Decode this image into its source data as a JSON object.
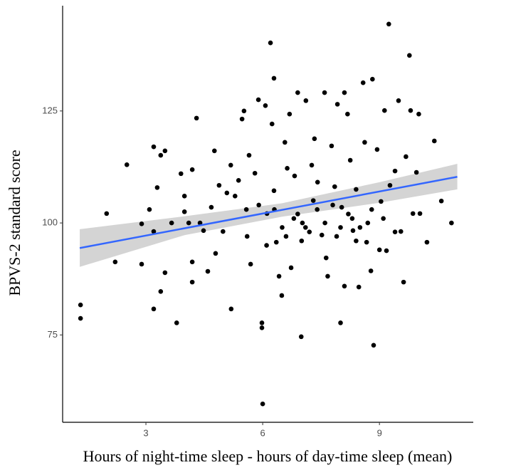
{
  "chart_data": {
    "type": "scatter",
    "x_label": "Hours of night-time sleep  -  hours of day-time sleep (mean)",
    "y_label": "BPVS-2 standard score",
    "xlim": [
      0.86,
      11.41
    ],
    "ylim": [
      55.5,
      148.5
    ],
    "xticks": [
      3,
      6,
      9
    ],
    "yticks": [
      75,
      100,
      125
    ],
    "color": "#000000",
    "x": [
      1.32,
      1.32,
      1.99,
      2.21,
      2.51,
      2.89,
      2.89,
      3.09,
      3.2,
      3.2,
      3.2,
      3.29,
      3.38,
      3.49,
      3.38,
      3.49,
      3.66,
      3.79,
      3.9,
      3.99,
      3.99,
      4.1,
      4.19,
      4.19,
      4.19,
      4.3,
      4.39,
      4.48,
      4.59,
      4.68,
      4.76,
      4.79,
      4.88,
      4.98,
      5.08,
      5.18,
      5.19,
      5.29,
      5.38,
      5.47,
      5.52,
      5.58,
      5.65,
      5.69,
      5.8,
      5.89,
      5.98,
      5.98,
      6.0,
      6.07,
      6.11,
      6.2,
      6.24,
      6.29,
      6.29,
      6.35,
      6.42,
      6.49,
      6.57,
      6.63,
      6.69,
      6.73,
      6.82,
      6.9,
      6.99,
      7.02,
      7.11,
      7.26,
      7.33,
      7.41,
      7.52,
      7.59,
      7.63,
      7.67,
      7.77,
      7.85,
      7.92,
      8.0,
      8.03,
      8.1,
      8.1,
      8.18,
      8.25,
      8.32,
      8.4,
      8.47,
      8.58,
      8.62,
      8.67,
      8.78,
      8.82,
      8.85,
      8.94,
      9.04,
      9.13,
      9.18,
      9.24,
      9.27,
      9.4,
      9.49,
      9.55,
      9.62,
      9.68,
      9.77,
      9.8,
      9.86,
      9.95,
      10.01,
      10.04,
      10.22,
      10.41,
      10.59,
      10.85,
      6.5,
      6.8,
      7.2,
      7.4,
      7.6,
      7.9,
      8.2,
      8.5,
      8.8,
      7.0,
      6.3,
      6.6,
      7.3,
      8.0,
      8.4,
      8.7,
      9.1,
      9.4,
      7.8,
      6.9,
      5.6,
      5.9,
      6.1,
      7.1,
      8.3,
      9.0
    ],
    "values": [
      81.7,
      78.7,
      102.1,
      91.3,
      113.0,
      99.8,
      90.8,
      103.0,
      117.0,
      98.1,
      80.8,
      107.9,
      115.1,
      116.1,
      84.7,
      88.9,
      100,
      77.7,
      111.0,
      106.0,
      102.5,
      100,
      111.9,
      91.3,
      86.8,
      123.4,
      100,
      98.3,
      89.2,
      103.5,
      116.1,
      93.2,
      108.4,
      98.1,
      106.7,
      112.9,
      80.8,
      106.0,
      109.5,
      123.2,
      125.0,
      103.0,
      115.1,
      90.8,
      111.1,
      127.5,
      77.7,
      76.6,
      59.6,
      126.2,
      102.1,
      140.2,
      122.1,
      132.3,
      107.2,
      95.7,
      88.1,
      83.8,
      118.0,
      112.2,
      124.3,
      90.0,
      110.5,
      129.1,
      74.6,
      100,
      127.3,
      112.9,
      118.8,
      109.1,
      97.3,
      129.1,
      92.2,
      88.1,
      117.2,
      108.1,
      126.5,
      77.7,
      103.5,
      129.1,
      85.9,
      124.3,
      114.0,
      98.3,
      107.5,
      85.7,
      131.3,
      118.0,
      95.7,
      89.3,
      132.1,
      72.7,
      116.4,
      104.8,
      125.1,
      93.8,
      144.4,
      108.4,
      111.6,
      127.3,
      98.1,
      86.8,
      114.8,
      137.4,
      125.1,
      102.1,
      111.3,
      124.3,
      102.1,
      95.7,
      118.3,
      104.9,
      100,
      99,
      101,
      98,
      103,
      100,
      97,
      102,
      99,
      103,
      96,
      103,
      97,
      105,
      99,
      96,
      100,
      101,
      98,
      104,
      102,
      97,
      104,
      95,
      99,
      101,
      94
    ],
    "trend": {
      "color": "#3366ff",
      "x": [
        1.3,
        11
      ],
      "y": [
        94.4,
        110.3
      ]
    },
    "band": {
      "color": "#cccccc",
      "x": [
        1.3,
        4,
        6.5,
        9,
        11
      ],
      "lower": [
        90.2,
        97.3,
        101.4,
        104.5,
        107.5
      ],
      "upper": [
        98.6,
        101.5,
        104.4,
        109.1,
        113.2
      ]
    }
  }
}
